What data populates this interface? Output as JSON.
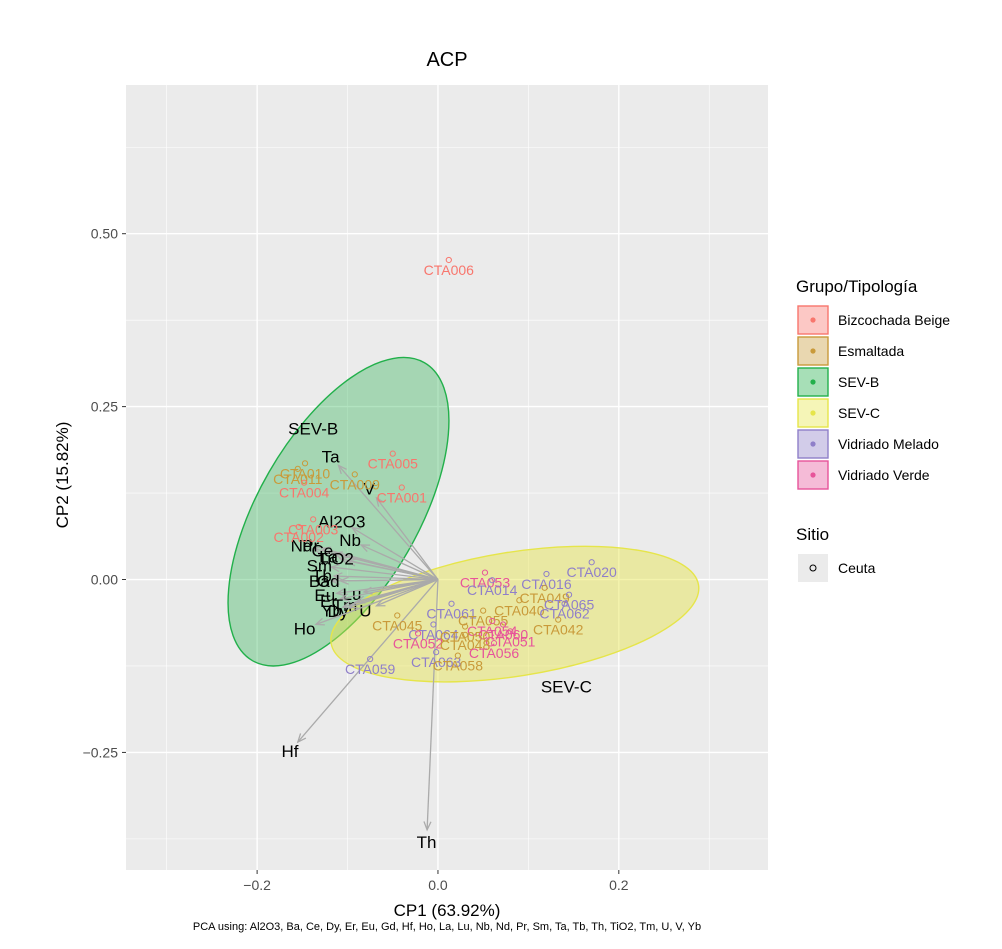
{
  "chart_data": {
    "type": "scatter",
    "title": "ACP",
    "xlabel": "CP1 (63.92%)",
    "ylabel": "CP2 (15.82%)",
    "caption": "PCA using: Al2O3, Ba, Ce, Dy, Er, Eu, Gd, Hf, Ho, La, Lu, Nb, Nd, Pr, Sm, Ta, Tb, Th, TiO2, Tm, U, V, Yb",
    "xlim": [
      -0.345,
      0.365
    ],
    "ylim": [
      -0.42,
      0.715
    ],
    "x_ticks": [
      -0.2,
      0.0,
      0.2
    ],
    "x_tick_labels": [
      "−0.2",
      "0.0",
      "0.2"
    ],
    "y_ticks": [
      -0.25,
      0.0,
      0.25,
      0.5
    ],
    "y_tick_labels": [
      "−0.25",
      "0.00",
      "0.25",
      "0.50"
    ],
    "grid": true,
    "legend": {
      "title": "Grupo/Tipología",
      "position": "right",
      "items": [
        {
          "label": "Bizcochada Beige",
          "color": "#F8766D"
        },
        {
          "label": "Esmaltada",
          "color": "#C99A3A"
        },
        {
          "label": "SEV-B",
          "color": "#22B04B"
        },
        {
          "label": "SEV-C",
          "color": "#E6E54A"
        },
        {
          "label": "Vidriado Melado",
          "color": "#8F7FC9"
        },
        {
          "label": "Vidriado Verde",
          "color": "#E7549A"
        }
      ]
    },
    "shape_legend": {
      "title": "Sitio",
      "items": [
        {
          "label": "Ceuta",
          "shape": "open-circle"
        }
      ]
    },
    "groups": [
      {
        "name": "Bizcochada Beige",
        "color": "#F8766D"
      },
      {
        "name": "Esmaltada",
        "color": "#C99A3A"
      },
      {
        "name": "Vidriado Melado",
        "color": "#8F7FC9"
      },
      {
        "name": "Vidriado Verde",
        "color": "#E7549A"
      }
    ],
    "points": [
      {
        "label": "CTA006",
        "group": "Bizcochada Beige",
        "x": 0.012,
        "y": 0.462
      },
      {
        "label": "CTA005",
        "group": "Bizcochada Beige",
        "x": -0.05,
        "y": 0.182
      },
      {
        "label": "CTA009",
        "group": "Esmaltada",
        "x": -0.092,
        "y": 0.152
      },
      {
        "label": "CTA001",
        "group": "Bizcochada Beige",
        "x": -0.04,
        "y": 0.133
      },
      {
        "label": "CTA010",
        "group": "Esmaltada",
        "x": -0.147,
        "y": 0.168
      },
      {
        "label": "CTA011",
        "group": "Esmaltada",
        "x": -0.155,
        "y": 0.16
      },
      {
        "label": "CTA004",
        "group": "Bizcochada Beige",
        "x": -0.148,
        "y": 0.14
      },
      {
        "label": "CTA003",
        "group": "Bizcochada Beige",
        "x": -0.138,
        "y": 0.087
      },
      {
        "label": "CTA002",
        "group": "Bizcochada Beige",
        "x": -0.154,
        "y": 0.076
      },
      {
        "label": "CTA020",
        "group": "Vidriado Melado",
        "x": 0.17,
        "y": 0.025
      },
      {
        "label": "CTA016",
        "group": "Vidriado Melado",
        "x": 0.12,
        "y": 0.008
      },
      {
        "label": "CTA053",
        "group": "Vidriado Verde",
        "x": 0.052,
        "y": 0.01
      },
      {
        "label": "CTA014",
        "group": "Vidriado Melado",
        "x": 0.06,
        "y": -0.001
      },
      {
        "label": "CTA049",
        "group": "Esmaltada",
        "x": 0.118,
        "y": -0.012
      },
      {
        "label": "CTA065",
        "group": "Vidriado Melado",
        "x": 0.145,
        "y": -0.022
      },
      {
        "label": "CTA040",
        "group": "Esmaltada",
        "x": 0.09,
        "y": -0.03
      },
      {
        "label": "CTA062",
        "group": "Vidriado Melado",
        "x": 0.14,
        "y": -0.035
      },
      {
        "label": "CTA061",
        "group": "Vidriado Melado",
        "x": 0.015,
        "y": -0.035
      },
      {
        "label": "CTA055",
        "group": "Esmaltada",
        "x": 0.05,
        "y": -0.045
      },
      {
        "label": "CTA054",
        "group": "Vidriado Verde",
        "x": 0.06,
        "y": -0.06
      },
      {
        "label": "CTA060",
        "group": "Vidriado Verde",
        "x": 0.072,
        "y": -0.065
      },
      {
        "label": "CTA042",
        "group": "Esmaltada",
        "x": 0.133,
        "y": -0.058
      },
      {
        "label": "CTA045",
        "group": "Esmaltada",
        "x": -0.045,
        "y": -0.052
      },
      {
        "label": "CTA064",
        "group": "Vidriado Melado",
        "x": -0.005,
        "y": -0.065
      },
      {
        "label": "CTA050",
        "group": "Esmaltada",
        "x": 0.03,
        "y": -0.068
      },
      {
        "label": "CTA051",
        "group": "Vidriado Verde",
        "x": 0.08,
        "y": -0.075
      },
      {
        "label": "CTA052",
        "group": "Vidriado Verde",
        "x": -0.022,
        "y": -0.078
      },
      {
        "label": "CTA048",
        "group": "Esmaltada",
        "x": 0.03,
        "y": -0.08
      },
      {
        "label": "CTA056",
        "group": "Vidriado Verde",
        "x": 0.062,
        "y": -0.092
      },
      {
        "label": "CTA063",
        "group": "Vidriado Melado",
        "x": -0.002,
        "y": -0.105
      },
      {
        "label": "CTA058",
        "group": "Esmaltada",
        "x": 0.022,
        "y": -0.11
      },
      {
        "label": "CTA059",
        "group": "Vidriado Melado",
        "x": -0.075,
        "y": -0.115
      }
    ],
    "ellipse_labels": [
      {
        "label": "SEV-B",
        "x": -0.138,
        "y": 0.218
      },
      {
        "label": "SEV-C",
        "x": 0.142,
        "y": -0.155
      }
    ],
    "loadings": [
      {
        "variable": "Ta",
        "x": -0.11,
        "y": 0.165
      },
      {
        "variable": "V",
        "x": -0.068,
        "y": 0.118
      },
      {
        "variable": "Al2O3",
        "x": -0.095,
        "y": 0.075
      },
      {
        "variable": "Nb",
        "x": -0.085,
        "y": 0.05
      },
      {
        "variable": "Nd",
        "x": -0.138,
        "y": 0.045
      },
      {
        "variable": "Pr",
        "x": -0.128,
        "y": 0.045
      },
      {
        "variable": "Ce",
        "x": -0.115,
        "y": 0.038
      },
      {
        "variable": "La",
        "x": -0.108,
        "y": 0.03
      },
      {
        "variable": "TiO2",
        "x": -0.1,
        "y": 0.027
      },
      {
        "variable": "Sm",
        "x": -0.118,
        "y": 0.018
      },
      {
        "variable": "Tb",
        "x": -0.115,
        "y": 0.005
      },
      {
        "variable": "Ba",
        "x": -0.118,
        "y": -0.002
      },
      {
        "variable": "Gd",
        "x": -0.108,
        "y": -0.002
      },
      {
        "variable": "Eu",
        "x": -0.112,
        "y": -0.02
      },
      {
        "variable": "Lu",
        "x": -0.082,
        "y": -0.018
      },
      {
        "variable": "Er",
        "x": -0.108,
        "y": -0.028
      },
      {
        "variable": "Tm",
        "x": -0.09,
        "y": -0.032
      },
      {
        "variable": "Yb",
        "x": -0.105,
        "y": -0.04
      },
      {
        "variable": "Dy",
        "x": -0.098,
        "y": -0.04
      },
      {
        "variable": "U",
        "x": -0.068,
        "y": -0.038
      },
      {
        "variable": "Ho",
        "x": -0.135,
        "y": -0.065
      },
      {
        "variable": "Hf",
        "x": -0.155,
        "y": -0.235
      },
      {
        "variable": "Th",
        "x": -0.012,
        "y": -0.362
      }
    ]
  }
}
